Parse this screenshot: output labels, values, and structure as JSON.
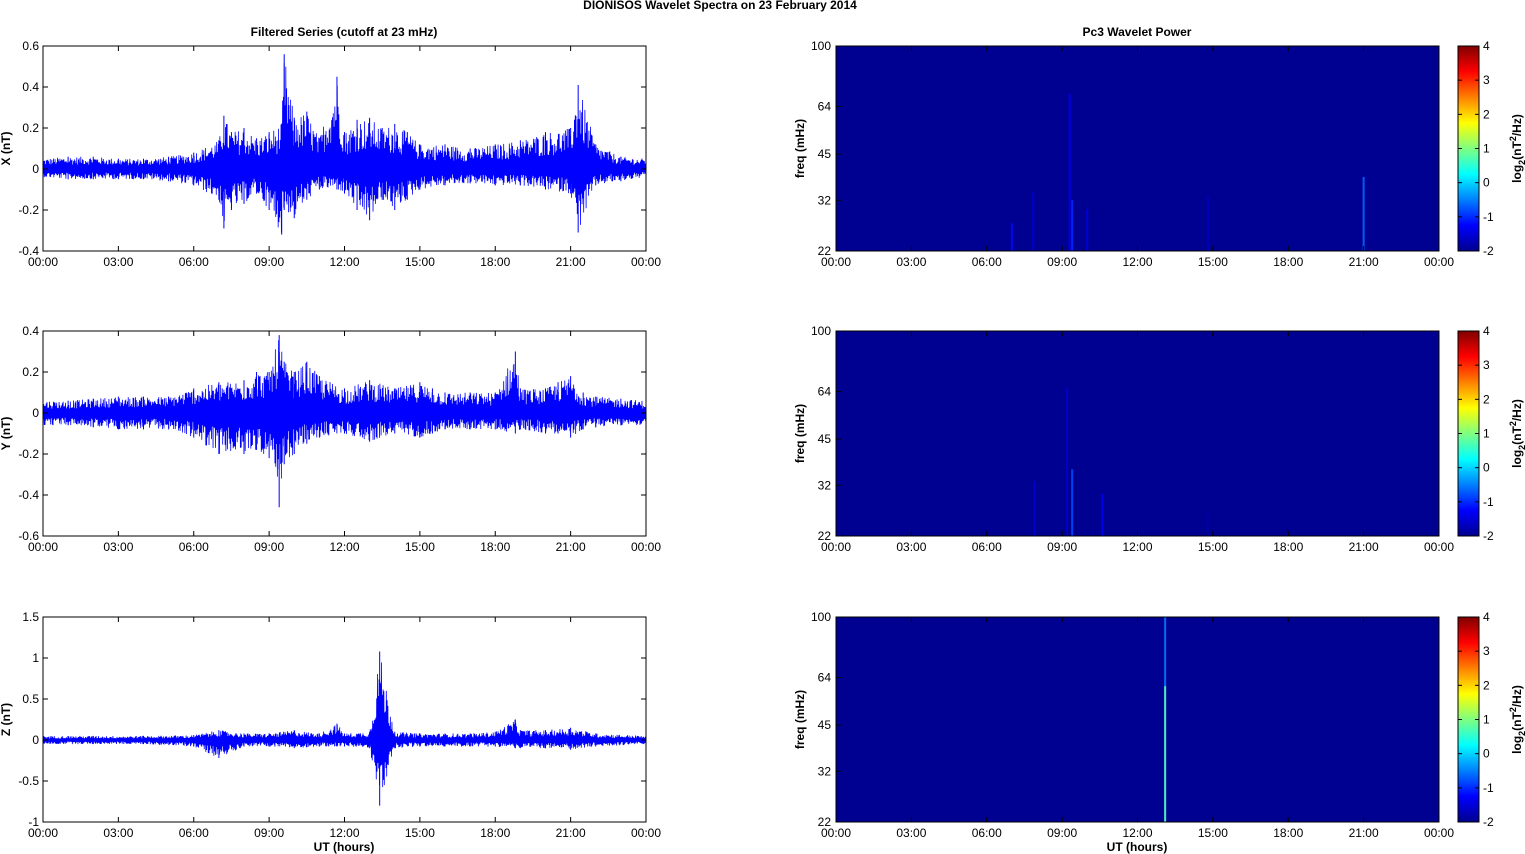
{
  "figure": {
    "title": "DIONISOS Wavelet Spectra on 23 February  2014",
    "left_title": "Filtered Series (cutoff at 23 mHz)",
    "right_title": "Pc3 Wavelet Power",
    "xlabel": "UT (hours)"
  },
  "colors": {
    "signal": "#0000ff",
    "background_field": "#00008f",
    "frame": "#000000"
  },
  "chart_data": [
    {
      "type": "line",
      "ylabel": "X (nT)",
      "xlim": [
        0,
        24
      ],
      "ylim": [
        -0.4,
        0.6
      ],
      "xticks": [
        "00:00",
        "03:00",
        "06:00",
        "09:00",
        "12:00",
        "15:00",
        "18:00",
        "21:00",
        "00:00"
      ],
      "yticks": [
        "-0.4",
        "-0.2",
        "0",
        "0.2",
        "0.4",
        "0.6"
      ],
      "ytick_values": [
        -0.4,
        -0.2,
        0,
        0.2,
        0.4,
        0.6
      ],
      "series": [
        {
          "x": [
            0,
            1,
            2,
            3,
            4,
            5,
            6,
            7,
            7.2,
            7.5,
            8,
            8.5,
            9,
            9.5,
            9.6,
            10,
            10.5,
            11,
            11.7,
            12,
            12.5,
            13,
            13.5,
            14,
            14.5,
            15,
            16,
            17,
            18,
            19,
            20,
            21,
            21.3,
            22,
            23,
            24
          ],
          "upper": [
            0.05,
            0.06,
            0.06,
            0.05,
            0.05,
            0.06,
            0.08,
            0.14,
            0.26,
            0.18,
            0.2,
            0.15,
            0.18,
            0.22,
            0.56,
            0.25,
            0.28,
            0.15,
            0.45,
            0.18,
            0.24,
            0.25,
            0.2,
            0.22,
            0.18,
            0.12,
            0.12,
            0.1,
            0.12,
            0.14,
            0.18,
            0.2,
            0.41,
            0.12,
            0.06,
            0.05
          ],
          "lower": [
            -0.04,
            -0.05,
            -0.05,
            -0.05,
            -0.05,
            -0.06,
            -0.08,
            -0.15,
            -0.29,
            -0.2,
            -0.17,
            -0.12,
            -0.2,
            -0.32,
            -0.2,
            -0.24,
            -0.15,
            -0.1,
            -0.1,
            -0.12,
            -0.2,
            -0.25,
            -0.15,
            -0.2,
            -0.15,
            -0.1,
            -0.08,
            -0.07,
            -0.08,
            -0.08,
            -0.1,
            -0.12,
            -0.31,
            -0.08,
            -0.06,
            -0.04
          ]
        }
      ]
    },
    {
      "type": "line",
      "ylabel": "Y (nT)",
      "xlim": [
        0,
        24
      ],
      "ylim": [
        -0.6,
        0.4
      ],
      "xticks": [
        "00:00",
        "03:00",
        "06:00",
        "09:00",
        "12:00",
        "15:00",
        "18:00",
        "21:00",
        "00:00"
      ],
      "yticks": [
        "-0.6",
        "-0.4",
        "-0.2",
        "0",
        "0.2",
        "0.4"
      ],
      "ytick_values": [
        -0.6,
        -0.4,
        -0.2,
        0,
        0.2,
        0.4
      ],
      "series": [
        {
          "x": [
            0,
            1,
            2,
            3,
            4,
            5,
            6,
            7,
            8,
            8.5,
            9,
            9.4,
            9.6,
            10,
            10.5,
            11,
            12,
            13,
            14,
            15,
            15.5,
            16,
            17,
            18,
            18.8,
            19,
            20,
            20.5,
            21,
            21.5,
            22,
            23,
            24
          ],
          "upper": [
            0.06,
            0.06,
            0.07,
            0.08,
            0.08,
            0.08,
            0.12,
            0.15,
            0.16,
            0.2,
            0.2,
            0.38,
            0.25,
            0.2,
            0.25,
            0.18,
            0.12,
            0.16,
            0.12,
            0.15,
            0.12,
            0.1,
            0.1,
            0.1,
            0.3,
            0.12,
            0.12,
            0.15,
            0.18,
            0.1,
            0.08,
            0.07,
            0.06
          ],
          "lower": [
            -0.06,
            -0.06,
            -0.07,
            -0.08,
            -0.08,
            -0.08,
            -0.12,
            -0.2,
            -0.2,
            -0.18,
            -0.22,
            -0.46,
            -0.25,
            -0.2,
            -0.15,
            -0.12,
            -0.1,
            -0.14,
            -0.1,
            -0.12,
            -0.1,
            -0.08,
            -0.08,
            -0.08,
            -0.1,
            -0.08,
            -0.1,
            -0.1,
            -0.12,
            -0.08,
            -0.07,
            -0.06,
            -0.06
          ]
        }
      ]
    },
    {
      "type": "line",
      "ylabel": "Z (nT)",
      "xlim": [
        0,
        24
      ],
      "ylim": [
        -1,
        1.5
      ],
      "xticks": [
        "00:00",
        "03:00",
        "06:00",
        "09:00",
        "12:00",
        "15:00",
        "18:00",
        "21:00",
        "00:00"
      ],
      "yticks": [
        "-1",
        "-0.5",
        "0",
        "0.5",
        "1",
        "1.5"
      ],
      "ytick_values": [
        -1,
        -0.5,
        0,
        0.5,
        1,
        1.5
      ],
      "series": [
        {
          "x": [
            0,
            2,
            4,
            6,
            7,
            8,
            9,
            10,
            11,
            11.7,
            12,
            13,
            13.4,
            14,
            15,
            16,
            17,
            18,
            18.8,
            19,
            20,
            21,
            22,
            24
          ],
          "upper": [
            0.05,
            0.05,
            0.05,
            0.06,
            0.12,
            0.08,
            0.08,
            0.12,
            0.08,
            0.2,
            0.08,
            0.1,
            1.08,
            0.1,
            0.08,
            0.08,
            0.08,
            0.1,
            0.25,
            0.12,
            0.12,
            0.15,
            0.08,
            0.05
          ],
          "lower": [
            -0.05,
            -0.05,
            -0.05,
            -0.08,
            -0.22,
            -0.08,
            -0.08,
            -0.1,
            -0.08,
            -0.08,
            -0.08,
            -0.1,
            -0.8,
            -0.1,
            -0.08,
            -0.08,
            -0.08,
            -0.08,
            -0.1,
            -0.1,
            -0.1,
            -0.12,
            -0.08,
            -0.05
          ]
        }
      ]
    },
    {
      "type": "heatmap",
      "ylabel": "freq (mHz)",
      "xlim": [
        0,
        24
      ],
      "ylim": [
        22,
        100
      ],
      "yscale": "log",
      "xticks": [
        "00:00",
        "03:00",
        "06:00",
        "09:00",
        "12:00",
        "15:00",
        "18:00",
        "21:00",
        "00:00"
      ],
      "yticks": [
        "22",
        "32",
        "45",
        "64",
        "100"
      ],
      "ytick_values": [
        22,
        32,
        45,
        64,
        100
      ],
      "colorbar": {
        "label_main": "log",
        "label_sub": "2",
        "label_tail": "(nT",
        "label_sup": "2",
        "label_end": "/Hz)",
        "range": [
          -2,
          4
        ],
        "ticks": [
          "4",
          "3",
          "2",
          "1",
          "0",
          "-1",
          "-2"
        ]
      },
      "background_level": -1.9,
      "events": [
        {
          "t": 7.0,
          "f_top": 27,
          "level": -1.2
        },
        {
          "t": 7.85,
          "f_top": 34,
          "level": -1.5
        },
        {
          "t": 9.3,
          "f_top": 70,
          "level": -1.3
        },
        {
          "t": 9.4,
          "f_top": 32,
          "level": -1.0
        },
        {
          "t": 10.0,
          "f_top": 30,
          "level": -1.4
        },
        {
          "t": 14.8,
          "f_top": 33,
          "level": -1.6
        },
        {
          "t": 21.0,
          "f_top": 38,
          "level": -0.6
        }
      ]
    },
    {
      "type": "heatmap",
      "ylabel": "freq (mHz)",
      "xlim": [
        0,
        24
      ],
      "ylim": [
        22,
        100
      ],
      "yscale": "log",
      "xticks": [
        "00:00",
        "03:00",
        "06:00",
        "09:00",
        "12:00",
        "15:00",
        "18:00",
        "21:00",
        "00:00"
      ],
      "yticks": [
        "22",
        "32",
        "45",
        "64",
        "100"
      ],
      "ytick_values": [
        22,
        32,
        45,
        64,
        100
      ],
      "colorbar": {
        "label_main": "log",
        "label_sub": "2",
        "label_tail": "(nT",
        "label_sup": "2",
        "label_end": "/Hz)",
        "range": [
          -2,
          4
        ],
        "ticks": [
          "4",
          "3",
          "2",
          "1",
          "0",
          "-1",
          "-2"
        ]
      },
      "background_level": -1.9,
      "events": [
        {
          "t": 7.9,
          "f_top": 33,
          "level": -1.5
        },
        {
          "t": 9.2,
          "f_top": 66,
          "level": -1.5
        },
        {
          "t": 9.4,
          "f_top": 36,
          "level": -0.8
        },
        {
          "t": 10.6,
          "f_top": 30,
          "level": -1.3
        },
        {
          "t": 14.8,
          "f_top": 26,
          "level": -1.7
        }
      ]
    },
    {
      "type": "heatmap",
      "ylabel": "freq (mHz)",
      "xlim": [
        0,
        24
      ],
      "ylim": [
        22,
        100
      ],
      "yscale": "log",
      "xticks": [
        "00:00",
        "03:00",
        "06:00",
        "09:00",
        "12:00",
        "15:00",
        "18:00",
        "21:00",
        "00:00"
      ],
      "yticks": [
        "22",
        "32",
        "45",
        "64",
        "100"
      ],
      "ytick_values": [
        22,
        32,
        45,
        64,
        100
      ],
      "colorbar": {
        "label_main": "log",
        "label_sub": "2",
        "label_tail": "(nT",
        "label_sup": "2",
        "label_end": "/Hz)",
        "range": [
          -2,
          4
        ],
        "ticks": [
          "4",
          "3",
          "2",
          "1",
          "0",
          "-1",
          "-2"
        ]
      },
      "background_level": -1.9,
      "events": [
        {
          "t": 13.1,
          "f_top": 100,
          "level": -0.5
        },
        {
          "t": 13.1,
          "f_top": 60,
          "level": 0.8
        }
      ]
    }
  ]
}
